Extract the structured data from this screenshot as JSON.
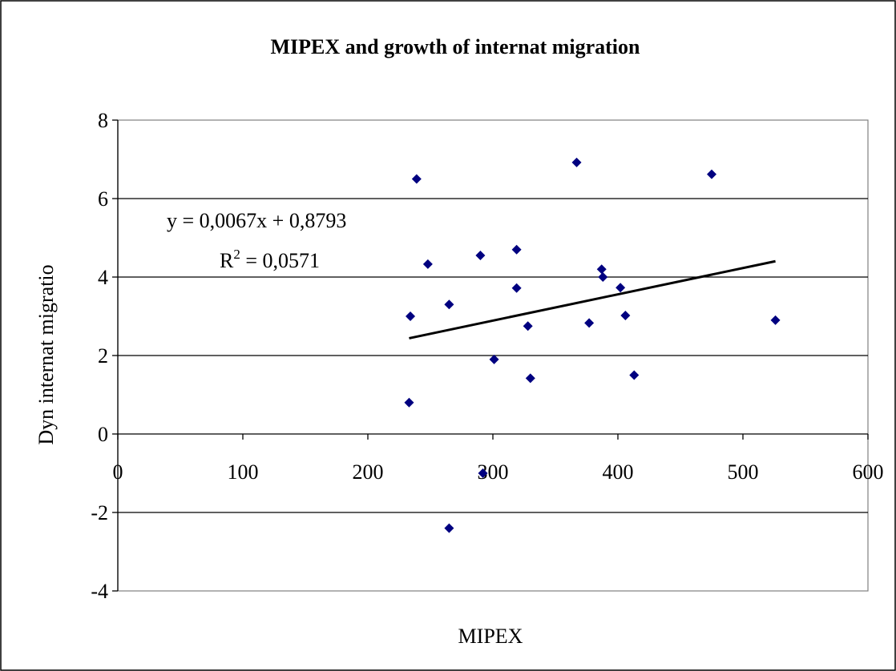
{
  "chart_data": {
    "type": "scatter",
    "title": "MIPEX and growth of internat migration",
    "xlabel": "MIPEX",
    "ylabel": "Dyn internat migratio",
    "xlim": [
      0,
      600
    ],
    "ylim": [
      -4,
      8
    ],
    "x_ticks": [
      "0",
      "100",
      "200",
      "300",
      "400",
      "500",
      "600"
    ],
    "y_ticks": [
      "-4",
      "-2",
      "0",
      "2",
      "4",
      "6",
      "8"
    ],
    "x_tick_values": [
      0,
      100,
      200,
      300,
      400,
      500,
      600
    ],
    "y_tick_values": [
      -4,
      -2,
      0,
      2,
      4,
      6,
      8
    ],
    "grid": "horizontal",
    "marker_color": "#000080",
    "points": [
      {
        "x": 233,
        "y": 0.8
      },
      {
        "x": 234,
        "y": 3.0
      },
      {
        "x": 239,
        "y": 6.5
      },
      {
        "x": 248,
        "y": 4.33
      },
      {
        "x": 265,
        "y": 3.3
      },
      {
        "x": 265,
        "y": -2.4
      },
      {
        "x": 290,
        "y": 4.55
      },
      {
        "x": 292,
        "y": -1.0
      },
      {
        "x": 301,
        "y": 1.9
      },
      {
        "x": 319,
        "y": 4.7
      },
      {
        "x": 319,
        "y": 3.72
      },
      {
        "x": 328,
        "y": 2.75
      },
      {
        "x": 330,
        "y": 1.42
      },
      {
        "x": 367,
        "y": 6.92
      },
      {
        "x": 377,
        "y": 2.83
      },
      {
        "x": 387,
        "y": 4.2
      },
      {
        "x": 388,
        "y": 4.0
      },
      {
        "x": 402,
        "y": 3.73
      },
      {
        "x": 406,
        "y": 3.02
      },
      {
        "x": 413,
        "y": 1.5
      },
      {
        "x": 475,
        "y": 6.62
      },
      {
        "x": 526,
        "y": 2.9
      }
    ],
    "trendline": {
      "type": "linear",
      "slope": 0.0067,
      "intercept": 0.8793,
      "x_range": [
        233,
        526
      ],
      "equation": "y = 0,0067x + 0,8793",
      "r2_prefix": "R",
      "r2_sup": "2",
      "r2_value": " = 0,0571"
    }
  }
}
